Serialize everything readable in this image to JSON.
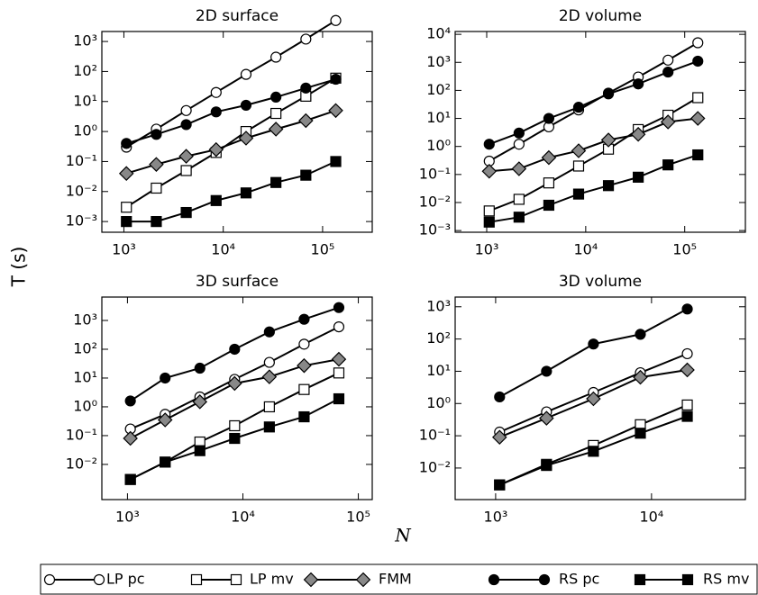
{
  "figure": {
    "ylabel": "T (s)",
    "xlabel": "N"
  },
  "chart_data": [
    {
      "type": "line",
      "title": "2D surface",
      "xlog": true,
      "ylog": true,
      "x": [
        1060,
        2120,
        4240,
        8480,
        16960,
        33920,
        67840,
        135680
      ],
      "xlim": [
        600,
        316000
      ],
      "ylim": [
        0.00044,
        2150
      ],
      "xticks": [
        {
          "value": 1000,
          "label": "10³"
        },
        {
          "value": 10000,
          "label": "10⁴"
        },
        {
          "value": 100000,
          "label": "10⁵"
        }
      ],
      "yticks": [
        {
          "value": 0.001,
          "label": "10⁻³"
        },
        {
          "value": 0.01,
          "label": "10⁻²"
        },
        {
          "value": 0.1,
          "label": "10⁻¹"
        },
        {
          "value": 1,
          "label": "10⁰"
        },
        {
          "value": 10,
          "label": "10¹"
        },
        {
          "value": 100,
          "label": "10²"
        },
        {
          "value": 1000,
          "label": "10³"
        }
      ],
      "series": [
        {
          "name": "LP pc",
          "marker": "circle",
          "color": "#000000",
          "fill": "#ffffff",
          "values": [
            0.3,
            1.2,
            5,
            20,
            80,
            300,
            1200,
            5000
          ]
        },
        {
          "name": "LP mv",
          "marker": "square",
          "color": "#000000",
          "fill": "#ffffff",
          "values": [
            0.003,
            0.013,
            0.05,
            0.2,
            1.0,
            4,
            15,
            60
          ]
        },
        {
          "name": "FMM",
          "marker": "diamond",
          "color": "#000000",
          "fill": "#888888",
          "values": [
            0.04,
            0.08,
            0.15,
            0.25,
            0.6,
            1.2,
            2.3,
            5
          ]
        },
        {
          "name": "RS pc",
          "marker": "circle",
          "color": "#000000",
          "fill": "#000000",
          "values": [
            0.4,
            0.8,
            1.7,
            4.5,
            7.5,
            14,
            28,
            55
          ]
        },
        {
          "name": "RS mv",
          "marker": "square",
          "color": "#000000",
          "fill": "#000000",
          "values": [
            0.001,
            0.001,
            0.002,
            0.005,
            0.009,
            0.02,
            0.035,
            0.1
          ]
        }
      ]
    },
    {
      "type": "line",
      "title": "2D volume",
      "xlog": true,
      "ylog": true,
      "x": [
        1060,
        2120,
        4240,
        8480,
        16960,
        33920,
        67840,
        135680
      ],
      "xlim": [
        480,
        410000
      ],
      "ylim": [
        0.00087,
        12600
      ],
      "xticks": [
        {
          "value": 1000,
          "label": "10³"
        },
        {
          "value": 10000,
          "label": "10⁴"
        },
        {
          "value": 100000,
          "label": "10⁵"
        }
      ],
      "yticks": [
        {
          "value": 0.001,
          "label": "10⁻³"
        },
        {
          "value": 0.01,
          "label": "10⁻²"
        },
        {
          "value": 0.1,
          "label": "10⁻¹"
        },
        {
          "value": 1,
          "label": "10⁰"
        },
        {
          "value": 10,
          "label": "10¹"
        },
        {
          "value": 100,
          "label": "10²"
        },
        {
          "value": 1000,
          "label": "10³"
        },
        {
          "value": 10000,
          "label": "10⁴"
        }
      ],
      "series": [
        {
          "name": "LP pc",
          "marker": "circle",
          "color": "#000000",
          "fill": "#ffffff",
          "values": [
            0.3,
            1.2,
            5,
            20,
            80,
            300,
            1200,
            5000
          ]
        },
        {
          "name": "LP mv",
          "marker": "square",
          "color": "#000000",
          "fill": "#ffffff",
          "values": [
            0.005,
            0.013,
            0.05,
            0.2,
            0.8,
            4,
            13,
            55
          ]
        },
        {
          "name": "FMM",
          "marker": "diamond",
          "color": "#000000",
          "fill": "#888888",
          "values": [
            0.13,
            0.16,
            0.4,
            0.7,
            1.7,
            2.7,
            7.5,
            10
          ]
        },
        {
          "name": "RS pc",
          "marker": "circle",
          "color": "#000000",
          "fill": "#000000",
          "values": [
            1.2,
            3,
            10,
            25,
            75,
            170,
            450,
            1100
          ]
        },
        {
          "name": "RS mv",
          "marker": "square",
          "color": "#000000",
          "fill": "#000000",
          "values": [
            0.002,
            0.003,
            0.008,
            0.02,
            0.04,
            0.08,
            0.22,
            0.5
          ]
        }
      ]
    },
    {
      "type": "line",
      "title": "3D surface",
      "xlog": true,
      "ylog": true,
      "x": [
        1060,
        2120,
        4240,
        8480,
        16960,
        33920,
        67840
      ],
      "xlim": [
        600,
        132000
      ],
      "ylim": [
        0.0006,
        6500
      ],
      "xticks": [
        {
          "value": 1000,
          "label": "10³"
        },
        {
          "value": 10000,
          "label": "10⁴"
        },
        {
          "value": 100000,
          "label": "10⁵"
        }
      ],
      "yticks": [
        {
          "value": 0.01,
          "label": "10⁻²"
        },
        {
          "value": 0.1,
          "label": "10⁻¹"
        },
        {
          "value": 1,
          "label": "10⁰"
        },
        {
          "value": 10,
          "label": "10¹"
        },
        {
          "value": 100,
          "label": "10²"
        },
        {
          "value": 1000,
          "label": "10³"
        }
      ],
      "series": [
        {
          "name": "LP pc",
          "marker": "circle",
          "color": "#000000",
          "fill": "#ffffff",
          "values": [
            0.17,
            0.55,
            2.2,
            9,
            35,
            150,
            600
          ]
        },
        {
          "name": "LP mv",
          "marker": "square",
          "color": "#000000",
          "fill": "#ffffff",
          "values": [
            0.003,
            0.012,
            0.06,
            0.22,
            1.0,
            4,
            15
          ]
        },
        {
          "name": "FMM",
          "marker": "diamond",
          "color": "#000000",
          "fill": "#888888",
          "values": [
            0.08,
            0.35,
            1.5,
            6.5,
            11,
            27,
            45
          ]
        },
        {
          "name": "RS pc",
          "marker": "circle",
          "color": "#000000",
          "fill": "#000000",
          "values": [
            1.6,
            10,
            22,
            100,
            400,
            1100,
            2800
          ]
        },
        {
          "name": "RS mv",
          "marker": "square",
          "color": "#000000",
          "fill": "#000000",
          "values": [
            0.003,
            0.012,
            0.03,
            0.08,
            0.2,
            0.45,
            1.9
          ]
        }
      ]
    },
    {
      "type": "line",
      "title": "3D volume",
      "xlog": true,
      "ylog": true,
      "x": [
        1060,
        2120,
        4240,
        8480,
        16960
      ],
      "xlim": [
        550,
        40000
      ],
      "ylim": [
        0.00105,
        2000
      ],
      "xticks": [
        {
          "value": 1000,
          "label": "10³"
        },
        {
          "value": 10000,
          "label": "10⁴"
        }
      ],
      "yticks": [
        {
          "value": 0.01,
          "label": "10⁻²"
        },
        {
          "value": 0.1,
          "label": "10⁻¹"
        },
        {
          "value": 1,
          "label": "10⁰"
        },
        {
          "value": 10,
          "label": "10¹"
        },
        {
          "value": 100,
          "label": "10²"
        },
        {
          "value": 1000,
          "label": "10³"
        }
      ],
      "series": [
        {
          "name": "LP pc",
          "marker": "circle",
          "color": "#000000",
          "fill": "#ffffff",
          "values": [
            0.13,
            0.55,
            2.2,
            9,
            35
          ]
        },
        {
          "name": "LP mv",
          "marker": "square",
          "color": "#000000",
          "fill": "#ffffff",
          "values": [
            0.003,
            0.013,
            0.05,
            0.22,
            0.9
          ]
        },
        {
          "name": "FMM",
          "marker": "diamond",
          "color": "#000000",
          "fill": "#888888",
          "values": [
            0.09,
            0.35,
            1.4,
            6.5,
            11
          ]
        },
        {
          "name": "RS pc",
          "marker": "circle",
          "color": "#000000",
          "fill": "#000000",
          "values": [
            1.6,
            10,
            70,
            140,
            850
          ]
        },
        {
          "name": "RS mv",
          "marker": "square",
          "color": "#000000",
          "fill": "#000000",
          "values": [
            0.003,
            0.012,
            0.033,
            0.12,
            0.4
          ]
        }
      ]
    }
  ]
}
